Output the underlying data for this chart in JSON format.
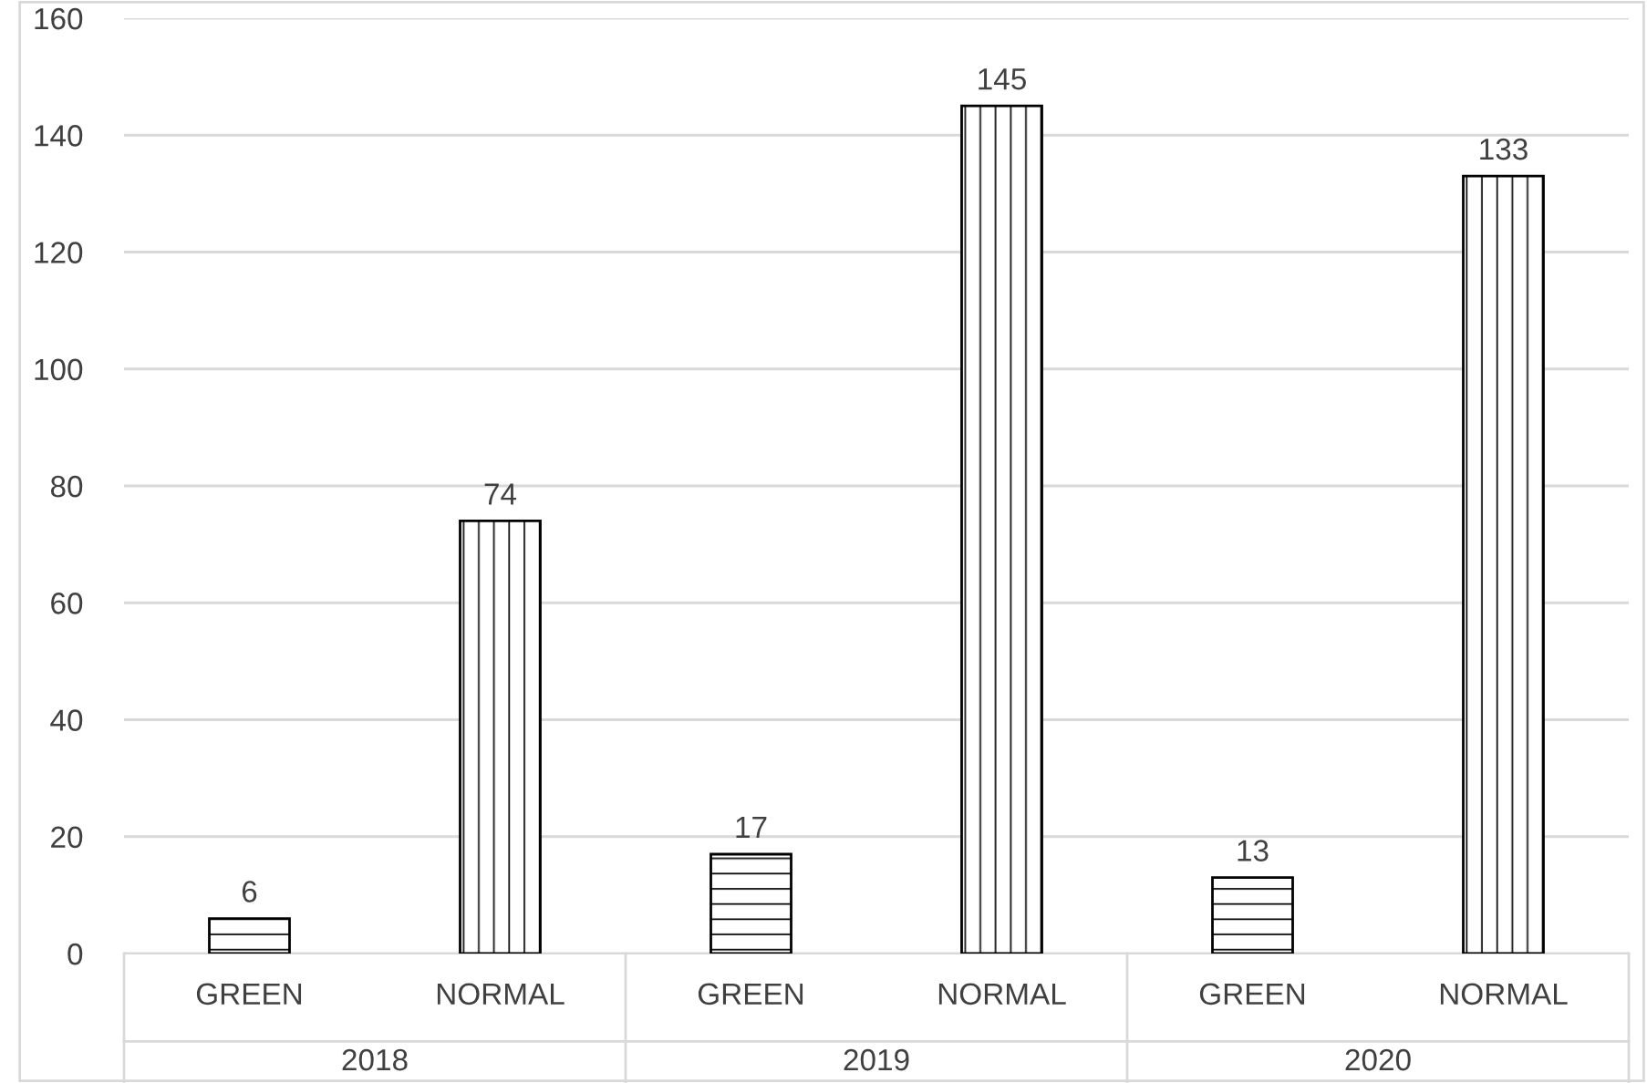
{
  "chart_data": {
    "type": "bar",
    "categories": [
      "2018",
      "2019",
      "2020"
    ],
    "series": [
      {
        "name": "GREEN",
        "color": "#000000",
        "values": [
          6,
          17,
          13
        ]
      },
      {
        "name": "NORMAL",
        "color": "#000000",
        "values": [
          74,
          145,
          133
        ]
      }
    ],
    "ylim": [
      0,
      160
    ],
    "yticks": [
      0,
      20,
      40,
      60,
      80,
      100,
      120,
      140,
      160
    ],
    "grid": "y",
    "data_labels": true,
    "legend": false
  }
}
